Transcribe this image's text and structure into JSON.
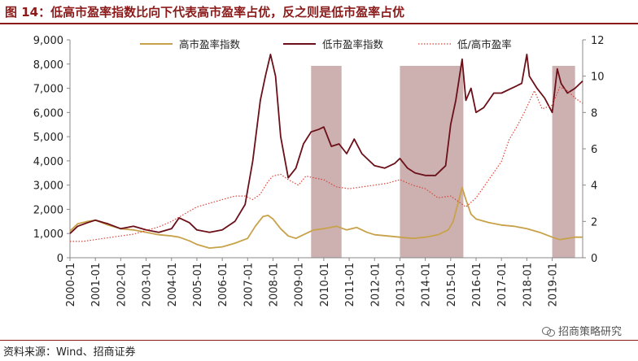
{
  "title": "图 14：低高市盈率指数比向下代表高市盈率占优，反之则是低市盈率占优",
  "source": "资料来源：Wind、招商证券",
  "watermark": "招商策略研究",
  "chart_data": {
    "type": "line",
    "left_axis": {
      "ticks": [
        "0",
        "1,000",
        "2,000",
        "3,000",
        "4,000",
        "5,000",
        "6,000",
        "7,000",
        "8,000",
        "9,000"
      ],
      "ylim": [
        0,
        9000
      ]
    },
    "right_axis": {
      "ticks": [
        "0",
        "2",
        "4",
        "6",
        "8",
        "10",
        "12"
      ],
      "ylim": [
        0,
        12
      ]
    },
    "x_ticks": [
      "2000-01",
      "2001-01",
      "2002-01",
      "2003-01",
      "2004-01",
      "2005-01",
      "2006-01",
      "2007-01",
      "2008-01",
      "2009-01",
      "2010-01",
      "2011-01",
      "2012-01",
      "2013-01",
      "2014-01",
      "2015-01",
      "2016-01",
      "2017-01",
      "2018-01",
      "2019-01"
    ],
    "xlim": [
      2000.0,
      2020.2
    ],
    "legend_position": "top",
    "shaded_periods": [
      [
        2009.5,
        2010.7
      ],
      [
        2013.0,
        2015.5
      ],
      [
        2019.0,
        2019.9
      ]
    ],
    "shade_color": "#c4a3a3",
    "series": [
      {
        "name": "高市盈率指数",
        "axis": "left",
        "style": "solid",
        "color": "#c8a24a",
        "x": [
          2000.0,
          2000.3,
          2000.7,
          2001.0,
          2001.5,
          2002.0,
          2002.5,
          2003.0,
          2003.5,
          2004.0,
          2004.3,
          2004.7,
          2005.0,
          2005.5,
          2006.0,
          2006.5,
          2007.0,
          2007.3,
          2007.6,
          2007.8,
          2008.0,
          2008.3,
          2008.6,
          2008.9,
          2009.2,
          2009.6,
          2010.0,
          2010.5,
          2010.9,
          2011.3,
          2011.7,
          2012.0,
          2012.5,
          2013.0,
          2013.5,
          2014.0,
          2014.5,
          2014.9,
          2015.1,
          2015.3,
          2015.45,
          2015.6,
          2015.8,
          2016.0,
          2016.5,
          2017.0,
          2017.5,
          2018.0,
          2018.5,
          2019.0,
          2019.3,
          2019.6,
          2019.9,
          2020.2
        ],
        "y": [
          1100,
          1400,
          1500,
          1550,
          1350,
          1200,
          1150,
          1050,
          950,
          900,
          850,
          700,
          550,
          400,
          450,
          600,
          800,
          1300,
          1700,
          1750,
          1600,
          1200,
          900,
          800,
          950,
          1150,
          1200,
          1300,
          1150,
          1250,
          1050,
          950,
          900,
          850,
          800,
          850,
          950,
          1150,
          1500,
          2300,
          2900,
          2400,
          1800,
          1600,
          1450,
          1350,
          1300,
          1200,
          1050,
          850,
          750,
          800,
          850,
          850
        ]
      },
      {
        "name": "低市盈率指数",
        "axis": "left",
        "style": "solid",
        "color": "#6b0f18",
        "x": [
          2000.0,
          2000.3,
          2000.7,
          2001.0,
          2001.5,
          2002.0,
          2002.5,
          2003.0,
          2003.5,
          2004.0,
          2004.3,
          2004.7,
          2005.0,
          2005.5,
          2006.0,
          2006.5,
          2006.9,
          2007.2,
          2007.5,
          2007.7,
          2007.9,
          2008.1,
          2008.3,
          2008.6,
          2008.9,
          2009.2,
          2009.5,
          2009.8,
          2010.0,
          2010.3,
          2010.6,
          2010.9,
          2011.2,
          2011.5,
          2011.8,
          2012.0,
          2012.4,
          2012.8,
          2013.0,
          2013.3,
          2013.6,
          2014.0,
          2014.4,
          2014.8,
          2015.0,
          2015.2,
          2015.35,
          2015.45,
          2015.6,
          2015.8,
          2016.0,
          2016.3,
          2016.7,
          2017.0,
          2017.4,
          2017.8,
          2018.0,
          2018.1,
          2018.4,
          2018.7,
          2019.0,
          2019.2,
          2019.35,
          2019.6,
          2019.9,
          2020.2
        ],
        "y": [
          1000,
          1300,
          1450,
          1550,
          1400,
          1200,
          1300,
          1150,
          1050,
          1200,
          1650,
          1450,
          1150,
          1050,
          1150,
          1500,
          2200,
          4000,
          6500,
          7500,
          8400,
          7500,
          5000,
          3300,
          3700,
          4700,
          5200,
          5300,
          5400,
          4600,
          4700,
          4300,
          4900,
          4300,
          4000,
          3800,
          3700,
          3900,
          4100,
          3700,
          3500,
          3400,
          3400,
          3800,
          5500,
          6500,
          7500,
          8200,
          6500,
          7000,
          6000,
          6200,
          6800,
          6800,
          7000,
          7200,
          8400,
          7500,
          7000,
          6600,
          6000,
          7800,
          7200,
          6800,
          7000,
          7300
        ]
      },
      {
        "name": "低/高市盈率",
        "axis": "right",
        "style": "dotted",
        "color": "#d9443a",
        "x": [
          2000.0,
          2000.5,
          2001.0,
          2001.5,
          2002.0,
          2002.5,
          2003.0,
          2003.5,
          2004.0,
          2004.5,
          2005.0,
          2005.5,
          2006.0,
          2006.5,
          2006.9,
          2007.2,
          2007.5,
          2007.8,
          2008.0,
          2008.3,
          2008.6,
          2009.0,
          2009.3,
          2009.6,
          2010.0,
          2010.5,
          2011.0,
          2011.5,
          2012.0,
          2012.5,
          2013.0,
          2013.5,
          2014.0,
          2014.5,
          2015.0,
          2015.4,
          2015.6,
          2016.0,
          2016.5,
          2017.0,
          2017.3,
          2017.6,
          2017.9,
          2018.1,
          2018.3,
          2018.6,
          2019.0,
          2019.3,
          2019.6,
          2019.9,
          2020.2
        ],
        "y": [
          0.9,
          0.9,
          1.0,
          1.1,
          1.2,
          1.3,
          1.5,
          1.7,
          2.0,
          2.4,
          2.8,
          3.0,
          3.2,
          3.4,
          3.4,
          3.2,
          3.5,
          4.2,
          4.5,
          4.6,
          4.3,
          4.0,
          4.5,
          4.4,
          4.3,
          3.9,
          3.8,
          3.9,
          4.0,
          4.1,
          4.3,
          4.0,
          3.8,
          3.3,
          3.4,
          3.0,
          2.8,
          3.3,
          4.3,
          5.3,
          6.5,
          7.2,
          8.0,
          8.6,
          9.2,
          8.2,
          8.4,
          9.4,
          9.2,
          8.8,
          8.5
        ]
      }
    ]
  }
}
